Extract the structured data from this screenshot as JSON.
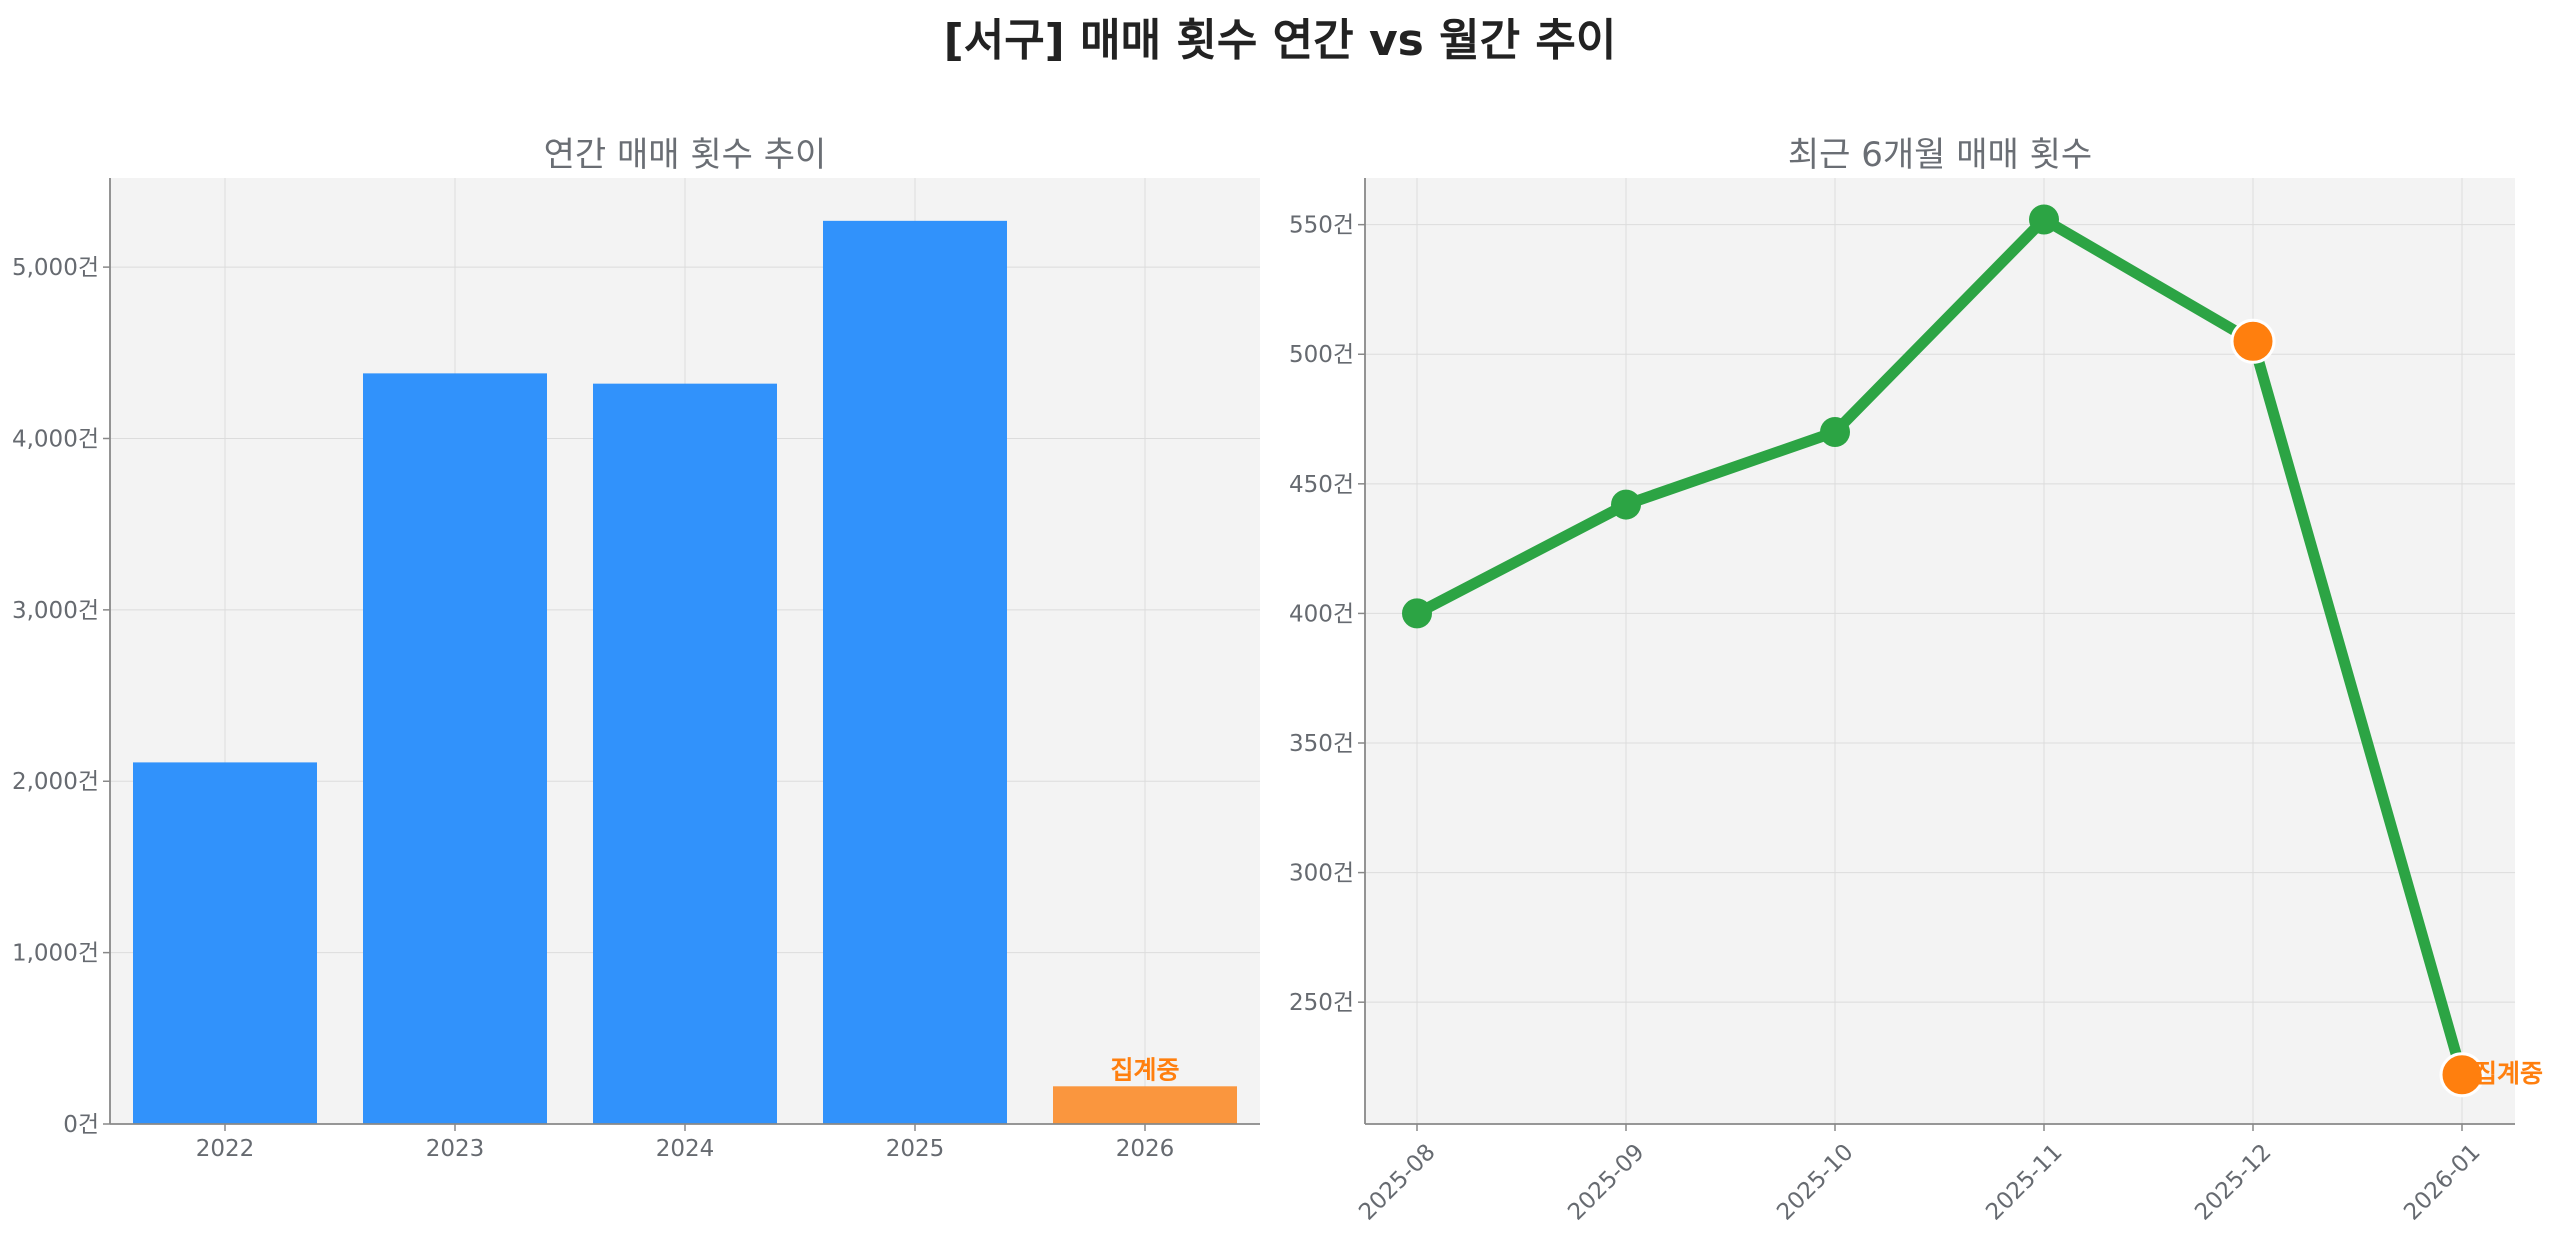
{
  "title": "[서구] 매매 횟수 연간 vs 월간 추이",
  "colors": {
    "bar": "#3192fb",
    "bar_partial": "#fa963e",
    "line": "#2ca444",
    "highlight": "#ff7f0e",
    "panel_bg": "#f3f3f3"
  },
  "chart_data": [
    {
      "type": "bar",
      "title": "연간 매매 횟수 추이",
      "categories": [
        "2022",
        "2023",
        "2024",
        "2025",
        "2026"
      ],
      "values": [
        2110,
        4380,
        4320,
        5270,
        220
      ],
      "partial_flags": [
        false,
        false,
        false,
        false,
        true
      ],
      "annotation": "집계중",
      "ylim": [
        0,
        5520
      ],
      "yticks": [
        0,
        1000,
        2000,
        3000,
        4000,
        5000
      ],
      "ytick_labels": [
        "0건",
        "1,000건",
        "2,000건",
        "3,000건",
        "4,000건",
        "5,000건"
      ],
      "grid": true
    },
    {
      "type": "line",
      "title": "최근 6개월 매매 횟수",
      "x": [
        "2025-08",
        "2025-09",
        "2025-10",
        "2025-11",
        "2025-12",
        "2026-01"
      ],
      "values": [
        400,
        442,
        470,
        552,
        505,
        222
      ],
      "highlight_flags": [
        false,
        false,
        false,
        false,
        true,
        true
      ],
      "annotation": "집계중",
      "ylim": [
        203,
        568
      ],
      "yticks": [
        250,
        300,
        350,
        400,
        450,
        500,
        550
      ],
      "ytick_labels": [
        "250건",
        "300건",
        "350건",
        "400건",
        "450건",
        "500건",
        "550건"
      ],
      "grid": true
    }
  ]
}
